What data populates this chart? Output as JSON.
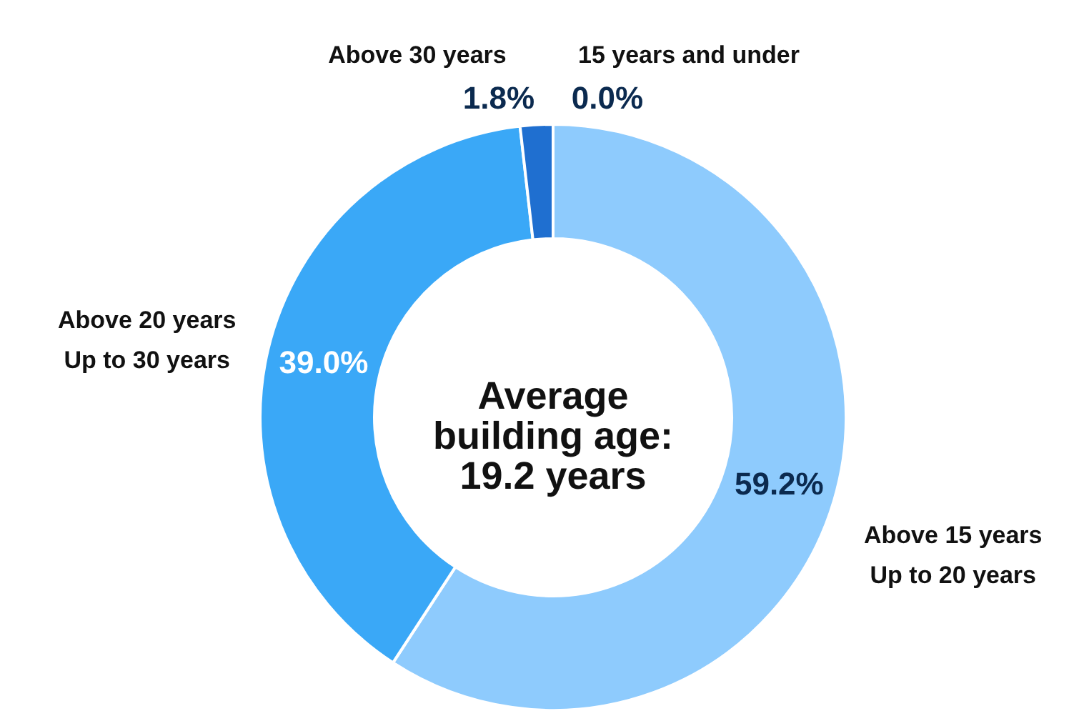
{
  "chart_data": {
    "type": "donut",
    "categories": [
      "15 years and under",
      "Above 15 years\nUp to 20 years",
      "Above 20 years\nUp to 30 years",
      "Above 30 years"
    ],
    "values": [
      0.0,
      59.2,
      39.0,
      1.8
    ],
    "colors": [
      "#1f6fd0",
      "#8ecbfd",
      "#3aa8f7",
      "#1f6fd0"
    ],
    "value_labels": [
      "0.0%",
      "59.2%",
      "39.0%",
      "1.8%"
    ],
    "annotations": [
      "Average\nbuilding age:\n19.2 years"
    ]
  }
}
